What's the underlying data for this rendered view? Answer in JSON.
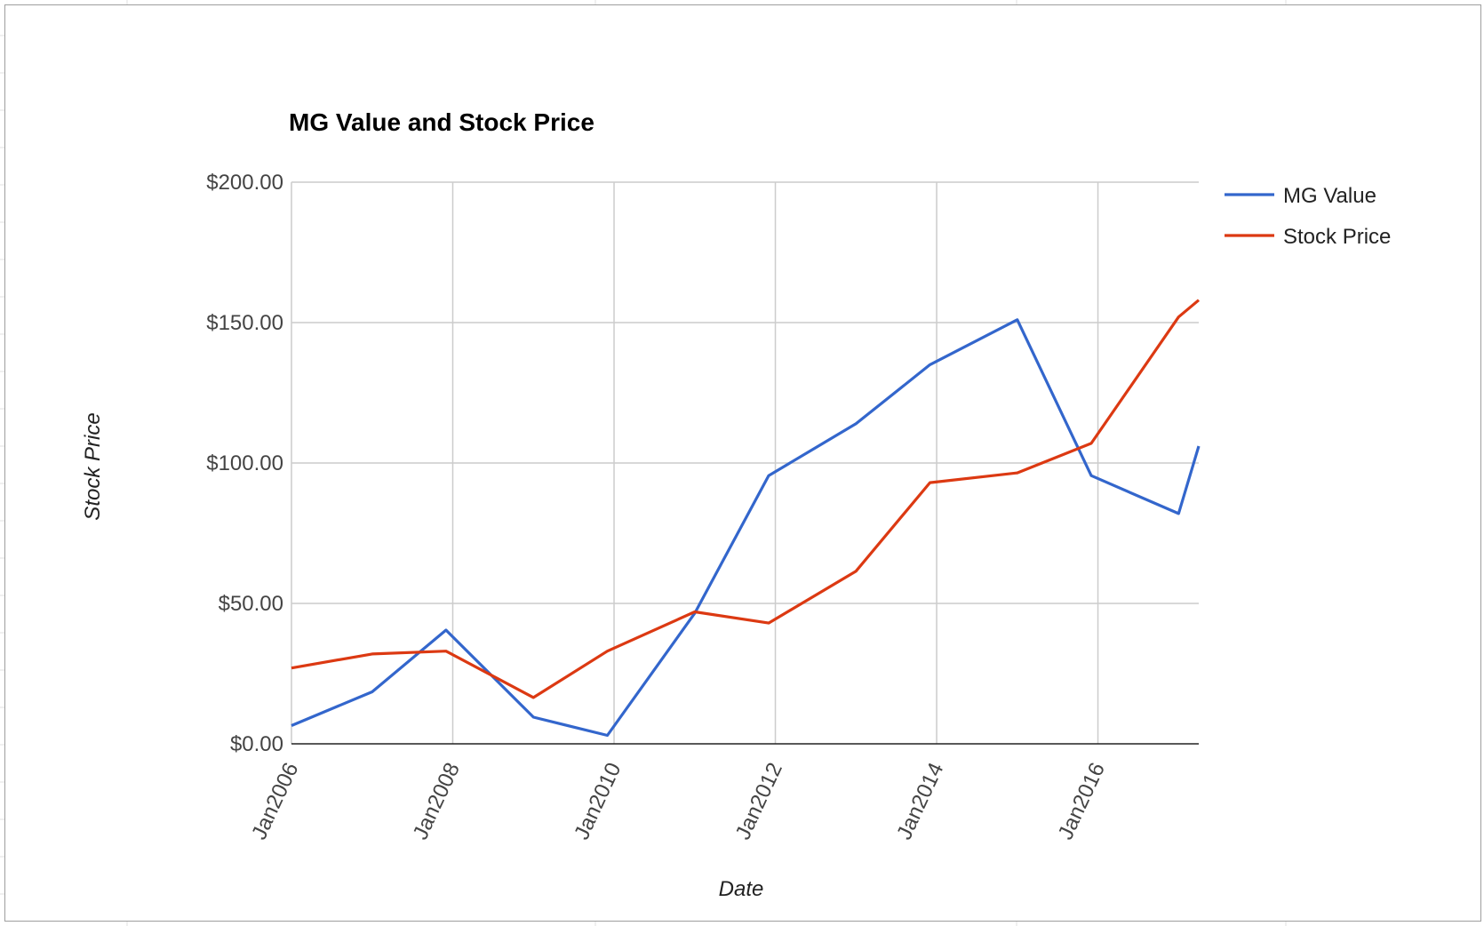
{
  "chart_data": {
    "type": "line",
    "title": "MG Value and Stock Price",
    "xlabel": "Date",
    "ylabel": "Stock Price",
    "x_tick_labels": [
      "Jan2006",
      "Jan2008",
      "Jan2010",
      "Jan2012",
      "Jan2014",
      "Jan2016"
    ],
    "y_tick_labels": [
      "$0.00",
      "$50.00",
      "$100.00",
      "$150.00",
      "$200.00"
    ],
    "ylim": [
      0,
      200
    ],
    "xlim": [
      "2006-01",
      "2017-04"
    ],
    "grid": true,
    "legend_position": "right",
    "x": [
      "2006-01",
      "2007-01",
      "2007-12",
      "2009-01",
      "2009-12",
      "2011-01",
      "2011-12",
      "2013-01",
      "2013-12",
      "2015-01",
      "2015-12",
      "2017-01",
      "2017-04"
    ],
    "series": [
      {
        "name": "MG Value",
        "color": "#3366cc",
        "values": [
          6.5,
          18.5,
          40.5,
          9.5,
          3,
          46.5,
          95.5,
          114,
          135,
          151,
          95.5,
          82,
          106
        ]
      },
      {
        "name": "Stock Price",
        "color": "#dc3912",
        "values": [
          27,
          32,
          33,
          16.5,
          33,
          47,
          43,
          61.5,
          93,
          96.5,
          107,
          152,
          158
        ]
      }
    ]
  }
}
